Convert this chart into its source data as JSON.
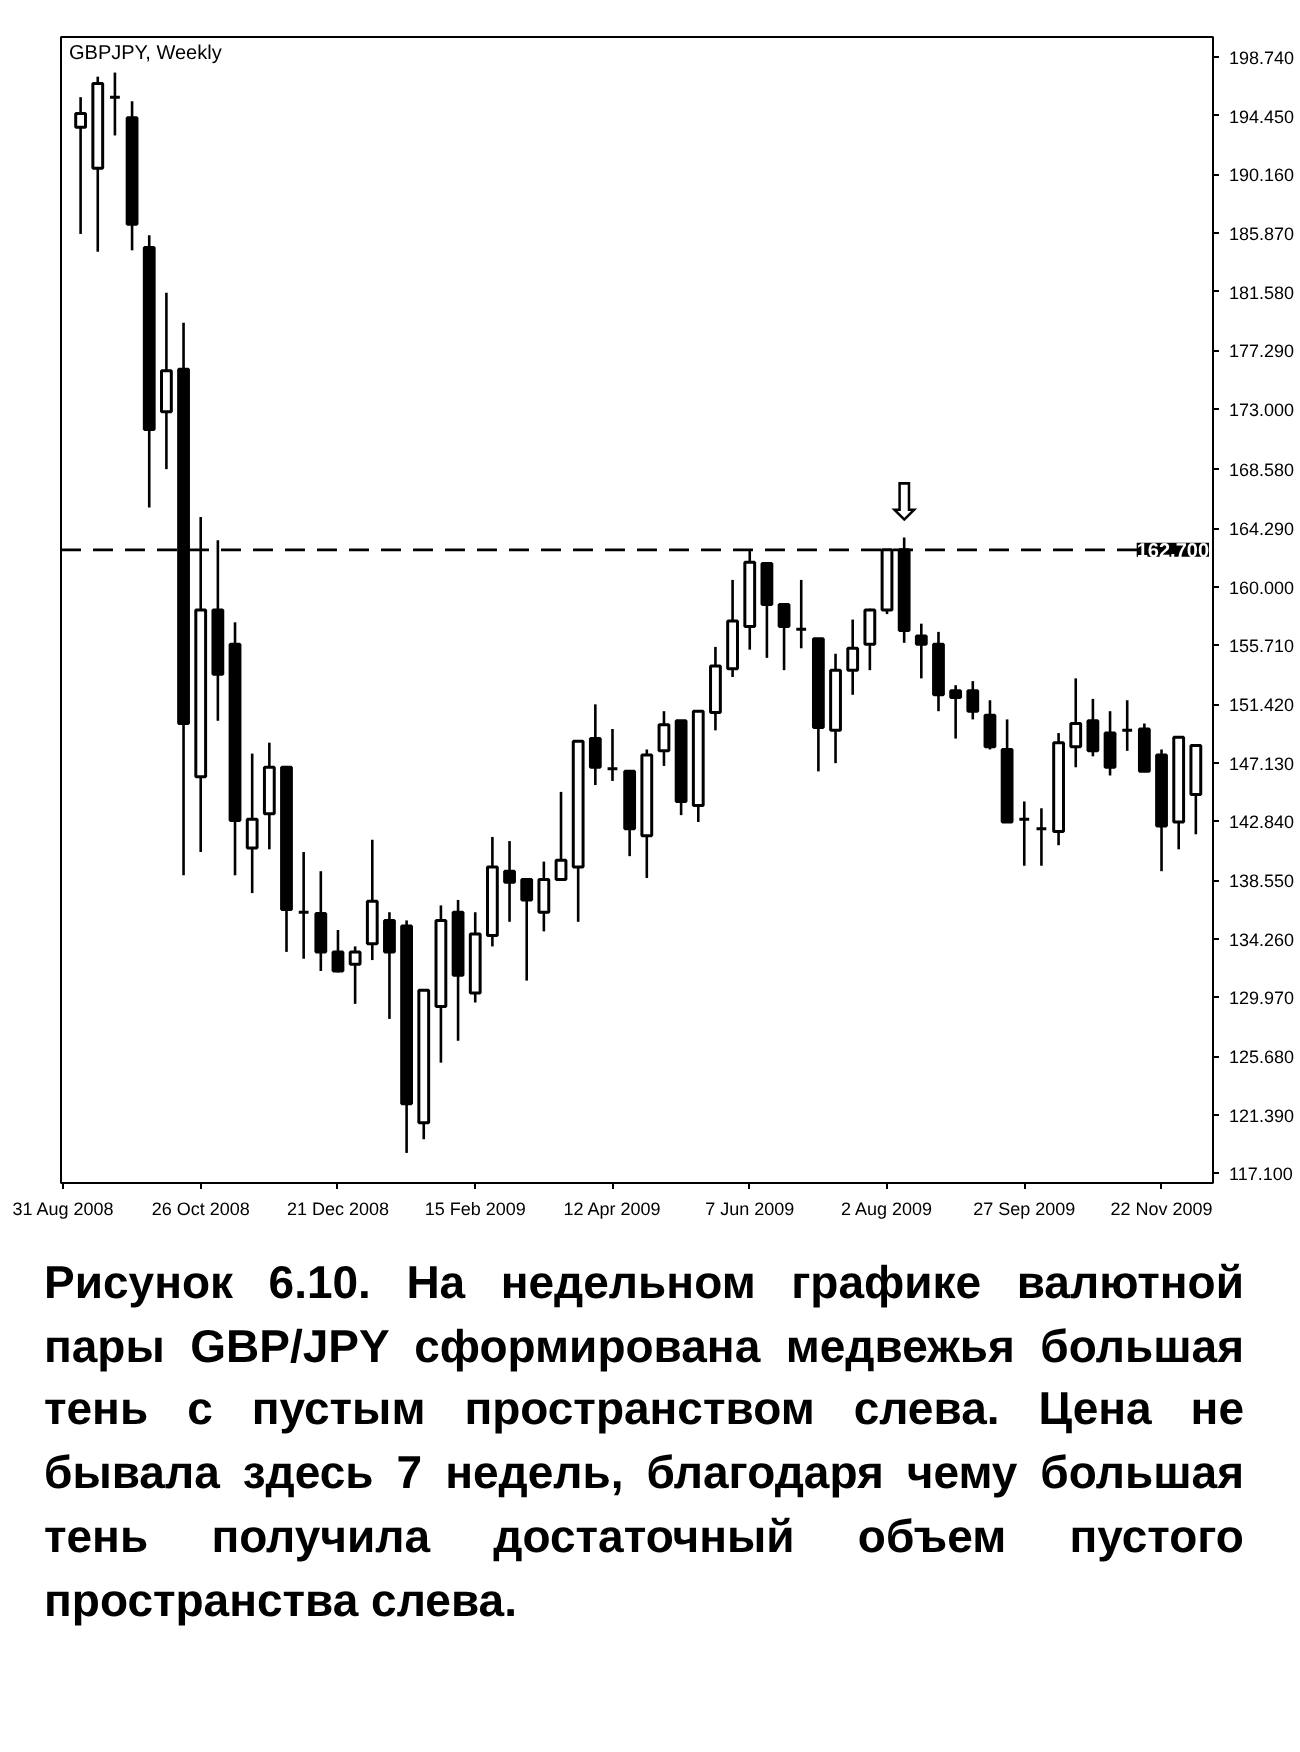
{
  "chart_data": {
    "type": "candlestick",
    "title": "GBPJPY, Weekly",
    "x": [
      "2008-09-07",
      "2008-09-14",
      "2008-09-21",
      "2008-09-28",
      "2008-10-05",
      "2008-10-12",
      "2008-10-19",
      "2008-10-26",
      "2008-11-02",
      "2008-11-09",
      "2008-11-16",
      "2008-11-23",
      "2008-11-30",
      "2008-12-07",
      "2008-12-14",
      "2008-12-21",
      "2008-12-28",
      "2009-01-04",
      "2009-01-11",
      "2009-01-18",
      "2009-01-25",
      "2009-02-01",
      "2009-02-08",
      "2009-02-15",
      "2009-02-22",
      "2009-03-01",
      "2009-03-08",
      "2009-03-15",
      "2009-03-22",
      "2009-03-29",
      "2009-04-05",
      "2009-04-12",
      "2009-04-19",
      "2009-04-26",
      "2009-05-03",
      "2009-05-10",
      "2009-05-17",
      "2009-05-24",
      "2009-05-31",
      "2009-06-07",
      "2009-06-14",
      "2009-06-21",
      "2009-06-28",
      "2009-07-05",
      "2009-07-12",
      "2009-07-19",
      "2009-07-26",
      "2009-08-02",
      "2009-08-09",
      "2009-08-16",
      "2009-08-23",
      "2009-08-30",
      "2009-09-06",
      "2009-09-13",
      "2009-09-20",
      "2009-09-27",
      "2009-10-04",
      "2009-10-11",
      "2009-10-18",
      "2009-10-25",
      "2009-11-01",
      "2009-11-08",
      "2009-11-15",
      "2009-11-22",
      "2009-11-29",
      "2009-12-06"
    ],
    "ohlc": [
      [
        193.6,
        195.8,
        185.8,
        194.6
      ],
      [
        190.6,
        197.3,
        184.5,
        196.8
      ],
      [
        195.8,
        197.6,
        193.0,
        195.8
      ],
      [
        194.3,
        195.5,
        184.6,
        186.5
      ],
      [
        184.8,
        185.7,
        165.8,
        171.5
      ],
      [
        172.8,
        181.5,
        168.6,
        175.8
      ],
      [
        175.9,
        179.3,
        138.9,
        150.0
      ],
      [
        146.1,
        165.1,
        140.6,
        158.3
      ],
      [
        158.3,
        163.4,
        150.2,
        153.6
      ],
      [
        155.8,
        157.4,
        138.9,
        142.9
      ],
      [
        140.9,
        147.8,
        137.6,
        143.0
      ],
      [
        143.4,
        148.6,
        140.8,
        146.8
      ],
      [
        146.8,
        146.8,
        133.3,
        136.4
      ],
      [
        136.2,
        140.6,
        132.8,
        136.2
      ],
      [
        136.1,
        139.2,
        131.9,
        133.3
      ],
      [
        133.3,
        134.9,
        131.8,
        131.9
      ],
      [
        132.4,
        133.7,
        129.5,
        133.3
      ],
      [
        133.9,
        141.5,
        132.7,
        137.0
      ],
      [
        135.6,
        136.2,
        128.4,
        133.3
      ],
      [
        135.2,
        135.6,
        118.6,
        122.2
      ],
      [
        120.8,
        130.5,
        119.6,
        130.5
      ],
      [
        129.3,
        136.7,
        125.2,
        135.6
      ],
      [
        136.2,
        137.1,
        126.8,
        131.6
      ],
      [
        130.3,
        136.2,
        129.6,
        134.6
      ],
      [
        134.5,
        141.7,
        133.7,
        139.5
      ],
      [
        139.2,
        141.4,
        135.5,
        138.4
      ],
      [
        138.6,
        138.6,
        131.2,
        137.1
      ],
      [
        136.2,
        139.9,
        134.8,
        138.6
      ],
      [
        138.6,
        145.0,
        138.6,
        140.0
      ],
      [
        139.5,
        148.7,
        135.5,
        148.7
      ],
      [
        148.9,
        151.4,
        145.5,
        146.8
      ],
      [
        146.7,
        149.6,
        145.8,
        146.7
      ],
      [
        146.5,
        146.5,
        140.3,
        142.3
      ],
      [
        141.8,
        148.1,
        138.7,
        147.7
      ],
      [
        148.0,
        150.9,
        146.9,
        149.9
      ],
      [
        150.2,
        150.2,
        143.3,
        144.3
      ],
      [
        144.0,
        150.9,
        142.8,
        150.9
      ],
      [
        150.8,
        155.6,
        149.5,
        154.2
      ],
      [
        154.0,
        160.5,
        153.4,
        157.5
      ],
      [
        157.1,
        162.7,
        155.4,
        161.8
      ],
      [
        161.7,
        161.7,
        154.8,
        158.7
      ],
      [
        158.7,
        158.7,
        153.9,
        157.1
      ],
      [
        156.9,
        160.5,
        155.5,
        156.9
      ],
      [
        156.2,
        156.2,
        146.5,
        149.7
      ],
      [
        149.5,
        155.1,
        147.1,
        153.9
      ],
      [
        153.9,
        157.6,
        152.1,
        155.5
      ],
      [
        155.8,
        158.4,
        153.9,
        158.3
      ],
      [
        158.3,
        162.7,
        158.0,
        162.7
      ],
      [
        162.7,
        163.6,
        155.9,
        156.8
      ],
      [
        156.4,
        157.3,
        153.3,
        155.8
      ],
      [
        155.8,
        156.7,
        150.9,
        152.1
      ],
      [
        152.4,
        152.8,
        148.9,
        151.9
      ],
      [
        152.4,
        153.1,
        150.3,
        150.9
      ],
      [
        150.6,
        151.7,
        148.1,
        148.3
      ],
      [
        148.1,
        150.3,
        142.8,
        142.8
      ],
      [
        143.0,
        144.3,
        139.6,
        143.0
      ],
      [
        142.3,
        143.8,
        139.6,
        142.3
      ],
      [
        142.1,
        149.3,
        141.1,
        148.6
      ],
      [
        148.3,
        153.3,
        146.8,
        150.0
      ],
      [
        150.2,
        151.8,
        147.6,
        148.0
      ],
      [
        149.3,
        150.9,
        146.2,
        146.8
      ],
      [
        149.5,
        151.7,
        148.0,
        149.5
      ],
      [
        149.6,
        150.0,
        146.5,
        146.5
      ],
      [
        147.7,
        148.1,
        139.2,
        142.5
      ],
      [
        142.8,
        149.0,
        140.8,
        149.0
      ],
      [
        144.8,
        148.4,
        141.9,
        148.4
      ]
    ],
    "xlim": [
      "2008-08-30",
      "2009-12-13"
    ],
    "xticks": [
      {
        "value": "2008-08-31",
        "label": "31 Aug 2008"
      },
      {
        "value": "2008-10-26",
        "label": "26 Oct 2008"
      },
      {
        "value": "2008-12-21",
        "label": "21 Dec 2008"
      },
      {
        "value": "2009-02-15",
        "label": "15 Feb 2009"
      },
      {
        "value": "2009-04-12",
        "label": "12 Apr 2009"
      },
      {
        "value": "2009-06-07",
        "label": "7 Jun 2009"
      },
      {
        "value": "2009-08-02",
        "label": "2 Aug 2009"
      },
      {
        "value": "2009-09-27",
        "label": "27 Sep 2009"
      },
      {
        "value": "2009-11-22",
        "label": "22 Nov 2009"
      }
    ],
    "ylim": [
      116.4,
      200.2
    ],
    "yticks": [
      {
        "value": 117.1,
        "label": "117.100"
      },
      {
        "value": 121.39,
        "label": "121.390"
      },
      {
        "value": 125.68,
        "label": "125.680"
      },
      {
        "value": 129.97,
        "label": "129.970"
      },
      {
        "value": 134.26,
        "label": "134.260"
      },
      {
        "value": 138.55,
        "label": "138.550"
      },
      {
        "value": 142.84,
        "label": "142.840"
      },
      {
        "value": 147.13,
        "label": "147.130"
      },
      {
        "value": 151.42,
        "label": "151.420"
      },
      {
        "value": 155.71,
        "label": "155.710"
      },
      {
        "value": 160.0,
        "label": "160.000"
      },
      {
        "value": 164.29,
        "label": "164.290"
      },
      {
        "value": 168.58,
        "label": "168.580"
      },
      {
        "value": 173.0,
        "label": "173.000"
      },
      {
        "value": 177.29,
        "label": "177.290"
      },
      {
        "value": 181.58,
        "label": "181.580"
      },
      {
        "value": 185.87,
        "label": "185.870"
      },
      {
        "value": 190.16,
        "label": "190.160"
      },
      {
        "value": 194.45,
        "label": "194.450"
      },
      {
        "value": 198.74,
        "label": "198.740"
      }
    ],
    "ref_lines": [
      {
        "axis": "y",
        "value": 162.7,
        "label": "162.700",
        "color": "#000000",
        "line_style": "dashed"
      }
    ],
    "grid": false,
    "annotations": [
      {
        "text": "⇩",
        "x": "2009-08-09",
        "y": 163.6
      },
      "Рисунок 6.10. На недельном графике валютной пары GBP/JPY сформирована медвежья большая тень с пустым пространством слева. Цена не бывала здесь 7 недель, благодаря чему большая тень получила достаточный объем пустого пространства слева."
    ]
  }
}
